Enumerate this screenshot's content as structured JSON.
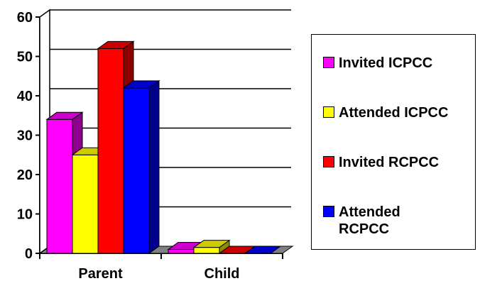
{
  "chart_data": {
    "type": "bar",
    "style": "3d-clustered-column",
    "categories": [
      "Parent",
      "Child"
    ],
    "series": [
      {
        "name": "Invited ICPCC",
        "values": [
          34,
          1
        ],
        "color": "#FF00FF"
      },
      {
        "name": "Attended ICPCC",
        "values": [
          25,
          1.5
        ],
        "color": "#FFFF00"
      },
      {
        "name": "Invited RCPCC",
        "values": [
          52,
          0
        ],
        "color": "#FF0000"
      },
      {
        "name": "Attended RCPCC",
        "values": [
          42,
          0
        ],
        "color": "#0000FF"
      }
    ],
    "y_ticks": [
      "0",
      "10",
      "20",
      "30",
      "40",
      "50",
      "60"
    ],
    "ylim": [
      0,
      60
    ],
    "grid": true,
    "legend_position": "right"
  }
}
